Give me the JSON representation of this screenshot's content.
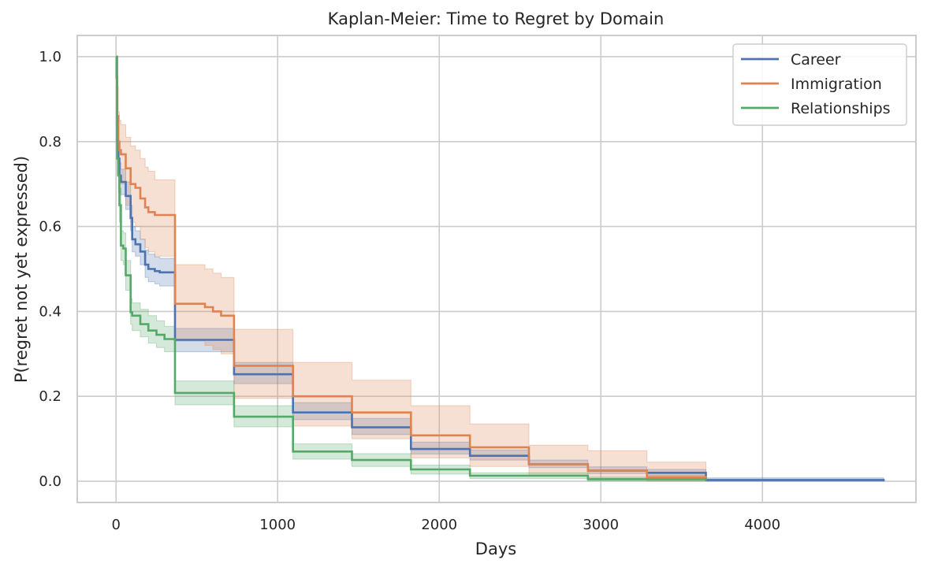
{
  "chart_data": {
    "type": "line",
    "subtype": "kaplan-meier step survival curves with confidence bands",
    "title": "Kaplan-Meier: Time to Regret by Domain",
    "xlabel": "Days",
    "ylabel": "P(regret not yet expressed)",
    "xlim": [
      -240,
      4950
    ],
    "ylim": [
      -0.05,
      1.05
    ],
    "xticks": [
      0,
      1000,
      2000,
      3000,
      4000
    ],
    "yticks": [
      0.0,
      0.2,
      0.4,
      0.6,
      0.8,
      1.0
    ],
    "xtick_labels": [
      "0",
      "1000",
      "2000",
      "3000",
      "4000"
    ],
    "ytick_labels": [
      "0.0",
      "0.2",
      "0.4",
      "0.6",
      "0.8",
      "1.0"
    ],
    "grid": true,
    "legend_position": "top-right",
    "series": [
      {
        "name": "Career",
        "color": "#4c72b0",
        "x": [
          0,
          7,
          14,
          21,
          30,
          60,
          90,
          100,
          120,
          150,
          180,
          200,
          240,
          270,
          365,
          730,
          1095,
          1460,
          1825,
          2190,
          2555,
          2920,
          3285,
          3650,
          4750
        ],
        "y": [
          1.0,
          0.8,
          0.76,
          0.72,
          0.705,
          0.672,
          0.62,
          0.57,
          0.558,
          0.541,
          0.51,
          0.5,
          0.495,
          0.492,
          0.333,
          0.252,
          0.162,
          0.127,
          0.076,
          0.06,
          0.04,
          0.025,
          0.02,
          0.003,
          0.0
        ],
        "ci_lower": [
          1.0,
          0.77,
          0.73,
          0.69,
          0.675,
          0.64,
          0.59,
          0.54,
          0.53,
          0.51,
          0.48,
          0.47,
          0.465,
          0.46,
          0.305,
          0.23,
          0.145,
          0.11,
          0.064,
          0.05,
          0.032,
          0.018,
          0.014,
          0.0,
          0.0
        ],
        "ci_upper": [
          1.0,
          0.83,
          0.79,
          0.75,
          0.735,
          0.705,
          0.65,
          0.6,
          0.59,
          0.57,
          0.545,
          0.535,
          0.528,
          0.525,
          0.36,
          0.28,
          0.185,
          0.148,
          0.092,
          0.074,
          0.05,
          0.034,
          0.028,
          0.008,
          0.003
        ]
      },
      {
        "name": "Immigration",
        "color": "#dd8452",
        "x": [
          0,
          7,
          14,
          21,
          30,
          60,
          90,
          120,
          150,
          180,
          200,
          240,
          365,
          550,
          600,
          650,
          730,
          1095,
          1460,
          1825,
          2190,
          2555,
          2920,
          3285,
          3650
        ],
        "y": [
          1.0,
          0.86,
          0.8,
          0.78,
          0.77,
          0.737,
          0.7,
          0.691,
          0.666,
          0.645,
          0.634,
          0.627,
          0.418,
          0.41,
          0.4,
          0.39,
          0.272,
          0.2,
          0.162,
          0.108,
          0.08,
          0.04,
          0.025,
          0.01,
          0.005
        ],
        "ci_lower": [
          1.0,
          0.8,
          0.74,
          0.72,
          0.7,
          0.65,
          0.61,
          0.6,
          0.57,
          0.55,
          0.54,
          0.53,
          0.33,
          0.32,
          0.31,
          0.3,
          0.195,
          0.13,
          0.1,
          0.055,
          0.035,
          0.012,
          0.005,
          0.0,
          0.0
        ],
        "ci_upper": [
          1.0,
          0.93,
          0.87,
          0.85,
          0.84,
          0.81,
          0.79,
          0.78,
          0.76,
          0.74,
          0.73,
          0.71,
          0.51,
          0.5,
          0.49,
          0.48,
          0.358,
          0.28,
          0.238,
          0.178,
          0.135,
          0.085,
          0.072,
          0.045,
          0.025
        ]
      },
      {
        "name": "Relationships",
        "color": "#55a868",
        "x": [
          0,
          3,
          7,
          14,
          21,
          30,
          45,
          60,
          90,
          100,
          150,
          200,
          250,
          300,
          365,
          730,
          1095,
          1460,
          1825,
          2190,
          2920,
          3650
        ],
        "y": [
          1.0,
          0.95,
          0.76,
          0.72,
          0.65,
          0.555,
          0.548,
          0.485,
          0.398,
          0.39,
          0.37,
          0.355,
          0.345,
          0.335,
          0.208,
          0.152,
          0.07,
          0.05,
          0.028,
          0.013,
          0.005,
          0.0
        ],
        "ci_lower": [
          1.0,
          0.92,
          0.72,
          0.68,
          0.61,
          0.52,
          0.51,
          0.45,
          0.37,
          0.355,
          0.34,
          0.325,
          0.315,
          0.305,
          0.18,
          0.128,
          0.052,
          0.035,
          0.017,
          0.006,
          0.001,
          0.0
        ],
        "ci_upper": [
          1.0,
          0.98,
          0.8,
          0.76,
          0.69,
          0.59,
          0.585,
          0.52,
          0.43,
          0.42,
          0.405,
          0.39,
          0.378,
          0.365,
          0.236,
          0.178,
          0.088,
          0.065,
          0.038,
          0.02,
          0.01,
          0.003
        ]
      }
    ]
  }
}
